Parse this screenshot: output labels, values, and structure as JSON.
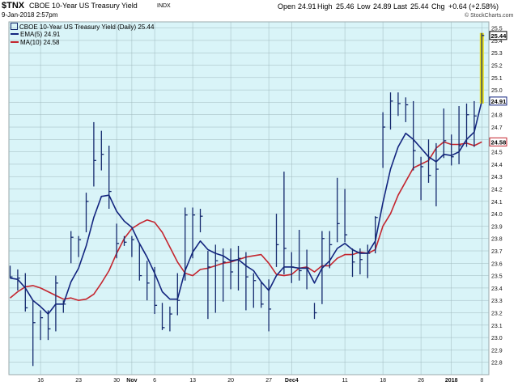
{
  "header": {
    "symbol": "$TNX",
    "name": "CBOE 10-Year US Treasury Yield",
    "exchange": "INDX",
    "datetime": "9-Jan-2018 2:57pm",
    "brand": "© StockCharts.com",
    "quote": {
      "open_label": "Open",
      "open": "24.91",
      "high_label": "High",
      "high": "25.46",
      "low_label": "Low",
      "low": "24.89",
      "last_label": "Last",
      "last": "25.44",
      "chg_label": "Chg",
      "chg": "+0.64 (+2.58%)"
    }
  },
  "legend": {
    "price": "CBOE 10-Year US Treasury Yield (Daily) 25.44",
    "ema": "EMA(5) 24.91",
    "ma": "MA(10) 24.58"
  },
  "colors": {
    "plot_bg": "#d9f4f8",
    "price_bar": "#152a6e",
    "ema": "#13257f",
    "ma": "#c4262f",
    "last_bar": "#e8e020",
    "grid": "#9fb8bd"
  },
  "chart_data": {
    "type": "ohlc",
    "x_tick_labels": [
      "16",
      "23",
      "30",
      "Nov",
      "6",
      "13",
      "20",
      "27",
      "Dec4",
      "11",
      "18",
      "26",
      "2018",
      "8"
    ],
    "y_tick_labels": [
      "22.8",
      "22.9",
      "23.0",
      "23.1",
      "23.2",
      "23.3",
      "23.4",
      "23.5",
      "23.6",
      "23.7",
      "23.8",
      "23.9",
      "24.0",
      "24.1",
      "24.2",
      "24.3",
      "24.4",
      "24.5",
      "24.6",
      "24.7",
      "24.8",
      "24.9",
      "25.0",
      "25.1",
      "25.2",
      "25.3",
      "25.4",
      "25.5"
    ],
    "ylim": [
      22.7,
      25.55
    ],
    "price_value_label": "25.44",
    "ema_value_label": "24.91",
    "ma_value_label": "24.58",
    "bars": [
      {
        "h": 23.58,
        "l": 23.48,
        "c": 23.49
      },
      {
        "h": 23.55,
        "l": 23.38,
        "c": 23.48
      },
      {
        "h": 23.52,
        "l": 23.21,
        "c": 23.24
      },
      {
        "h": 23.3,
        "l": 22.77,
        "c": 23.12
      },
      {
        "h": 23.22,
        "l": 22.98,
        "c": 23.16
      },
      {
        "h": 23.22,
        "l": 22.98,
        "c": 23.07
      },
      {
        "h": 23.5,
        "l": 23.05,
        "c": 23.44
      },
      {
        "h": 23.3,
        "l": 23.2,
        "c": 23.27
      },
      {
        "h": 23.86,
        "l": 23.6,
        "c": 23.81
      },
      {
        "h": 23.82,
        "l": 23.65,
        "c": 23.79
      },
      {
        "h": 24.17,
        "l": 23.85,
        "c": 24.1
      },
      {
        "h": 24.74,
        "l": 24.22,
        "c": 24.43
      },
      {
        "h": 24.67,
        "l": 24.35,
        "c": 24.48
      },
      {
        "h": 24.55,
        "l": 24.04,
        "c": 24.18
      },
      {
        "h": 23.92,
        "l": 23.64,
        "c": 23.76
      },
      {
        "h": 23.82,
        "l": 23.74,
        "c": 23.77
      },
      {
        "h": 23.82,
        "l": 23.65,
        "c": 23.79
      },
      {
        "h": 23.76,
        "l": 23.46,
        "c": 23.5
      },
      {
        "h": 23.62,
        "l": 23.3,
        "c": 23.44
      },
      {
        "h": 23.57,
        "l": 23.19,
        "c": 23.26
      },
      {
        "h": 23.28,
        "l": 23.06,
        "c": 23.08
      },
      {
        "h": 23.25,
        "l": 23.05,
        "c": 23.19
      },
      {
        "h": 23.52,
        "l": 23.18,
        "c": 23.3
      },
      {
        "h": 24.05,
        "l": 23.46,
        "c": 23.99
      },
      {
        "h": 24.05,
        "l": 23.64,
        "c": 23.99
      },
      {
        "h": 24.04,
        "l": 23.85,
        "c": 23.98
      },
      {
        "h": 23.7,
        "l": 23.15,
        "c": 23.57
      },
      {
        "h": 23.75,
        "l": 23.2,
        "c": 23.62
      },
      {
        "h": 23.72,
        "l": 23.29,
        "c": 23.61
      },
      {
        "h": 23.72,
        "l": 23.39,
        "c": 23.53
      },
      {
        "h": 23.74,
        "l": 23.38,
        "c": 23.64
      },
      {
        "h": 23.69,
        "l": 23.22,
        "c": 23.49
      },
      {
        "h": 23.52,
        "l": 23.24,
        "c": 23.46
      },
      {
        "h": 23.45,
        "l": 23.24,
        "c": 23.27
      },
      {
        "h": 23.47,
        "l": 23.05,
        "c": 23.23
      },
      {
        "h": 24.0,
        "l": 23.57,
        "c": 23.75
      },
      {
        "h": 24.34,
        "l": 23.51,
        "c": 23.72
      },
      {
        "h": 23.69,
        "l": 23.44,
        "c": 23.57
      },
      {
        "h": 23.87,
        "l": 23.46,
        "c": 23.54
      },
      {
        "h": 23.71,
        "l": 23.39,
        "c": 23.56
      },
      {
        "h": 23.28,
        "l": 23.15,
        "c": 23.2
      },
      {
        "h": 23.86,
        "l": 23.27,
        "c": 23.8
      },
      {
        "h": 23.86,
        "l": 23.56,
        "c": 23.75
      },
      {
        "h": 24.29,
        "l": 23.77,
        "c": 23.92
      },
      {
        "h": 24.2,
        "l": 23.77,
        "c": 23.83
      },
      {
        "h": 23.72,
        "l": 23.49,
        "c": 23.61
      },
      {
        "h": 23.72,
        "l": 23.51,
        "c": 23.63
      },
      {
        "h": 23.75,
        "l": 23.48,
        "c": 23.68
      },
      {
        "h": 23.98,
        "l": 23.68,
        "c": 23.97
      },
      {
        "h": 24.82,
        "l": 24.37,
        "c": 24.7
      },
      {
        "h": 24.98,
        "l": 24.68,
        "c": 24.91
      },
      {
        "h": 24.98,
        "l": 24.79,
        "c": 24.89
      },
      {
        "h": 24.94,
        "l": 24.74,
        "c": 24.88
      },
      {
        "h": 24.91,
        "l": 24.35,
        "c": 24.51
      },
      {
        "h": 24.46,
        "l": 24.11,
        "c": 24.38
      },
      {
        "h": 24.6,
        "l": 24.25,
        "c": 24.31
      },
      {
        "h": 24.57,
        "l": 24.06,
        "c": 24.36
      },
      {
        "h": 24.85,
        "l": 24.45,
        "c": 24.59
      },
      {
        "h": 24.64,
        "l": 24.39,
        "c": 24.46
      },
      {
        "h": 24.87,
        "l": 24.4,
        "c": 24.55
      },
      {
        "h": 24.89,
        "l": 24.54,
        "c": 24.8
      },
      {
        "h": 24.91,
        "l": 24.54,
        "c": 24.79
      },
      {
        "h": 25.46,
        "l": 24.89,
        "c": 25.44
      }
    ],
    "ema5": [
      23.48,
      23.47,
      23.4,
      23.3,
      23.25,
      23.19,
      23.27,
      23.27,
      23.45,
      23.56,
      23.74,
      23.97,
      24.14,
      24.15,
      24.02,
      23.94,
      23.89,
      23.76,
      23.65,
      23.52,
      23.37,
      23.31,
      23.31,
      23.54,
      23.69,
      23.78,
      23.71,
      23.68,
      23.66,
      23.62,
      23.63,
      23.58,
      23.54,
      23.45,
      23.38,
      23.5,
      23.57,
      23.57,
      23.56,
      23.56,
      23.44,
      23.56,
      23.62,
      23.72,
      23.76,
      23.71,
      23.68,
      23.68,
      23.78,
      24.09,
      24.36,
      24.54,
      24.65,
      24.6,
      24.53,
      24.46,
      24.42,
      24.48,
      24.47,
      24.5,
      24.6,
      24.66,
      24.91
    ],
    "ma10": [
      23.32,
      23.37,
      23.41,
      23.42,
      23.4,
      23.37,
      23.34,
      23.31,
      23.32,
      23.3,
      23.31,
      23.35,
      23.44,
      23.54,
      23.68,
      23.8,
      23.88,
      23.92,
      23.95,
      23.93,
      23.85,
      23.73,
      23.61,
      23.52,
      23.5,
      23.55,
      23.56,
      23.58,
      23.6,
      23.61,
      23.63,
      23.65,
      23.66,
      23.67,
      23.6,
      23.51,
      23.5,
      23.51,
      23.56,
      23.57,
      23.53,
      23.58,
      23.58,
      23.64,
      23.67,
      23.67,
      23.69,
      23.68,
      23.71,
      23.9,
      24.0,
      24.15,
      24.26,
      24.37,
      24.4,
      24.43,
      24.53,
      24.58,
      24.56,
      24.56,
      24.57,
      24.55,
      24.58
    ]
  }
}
